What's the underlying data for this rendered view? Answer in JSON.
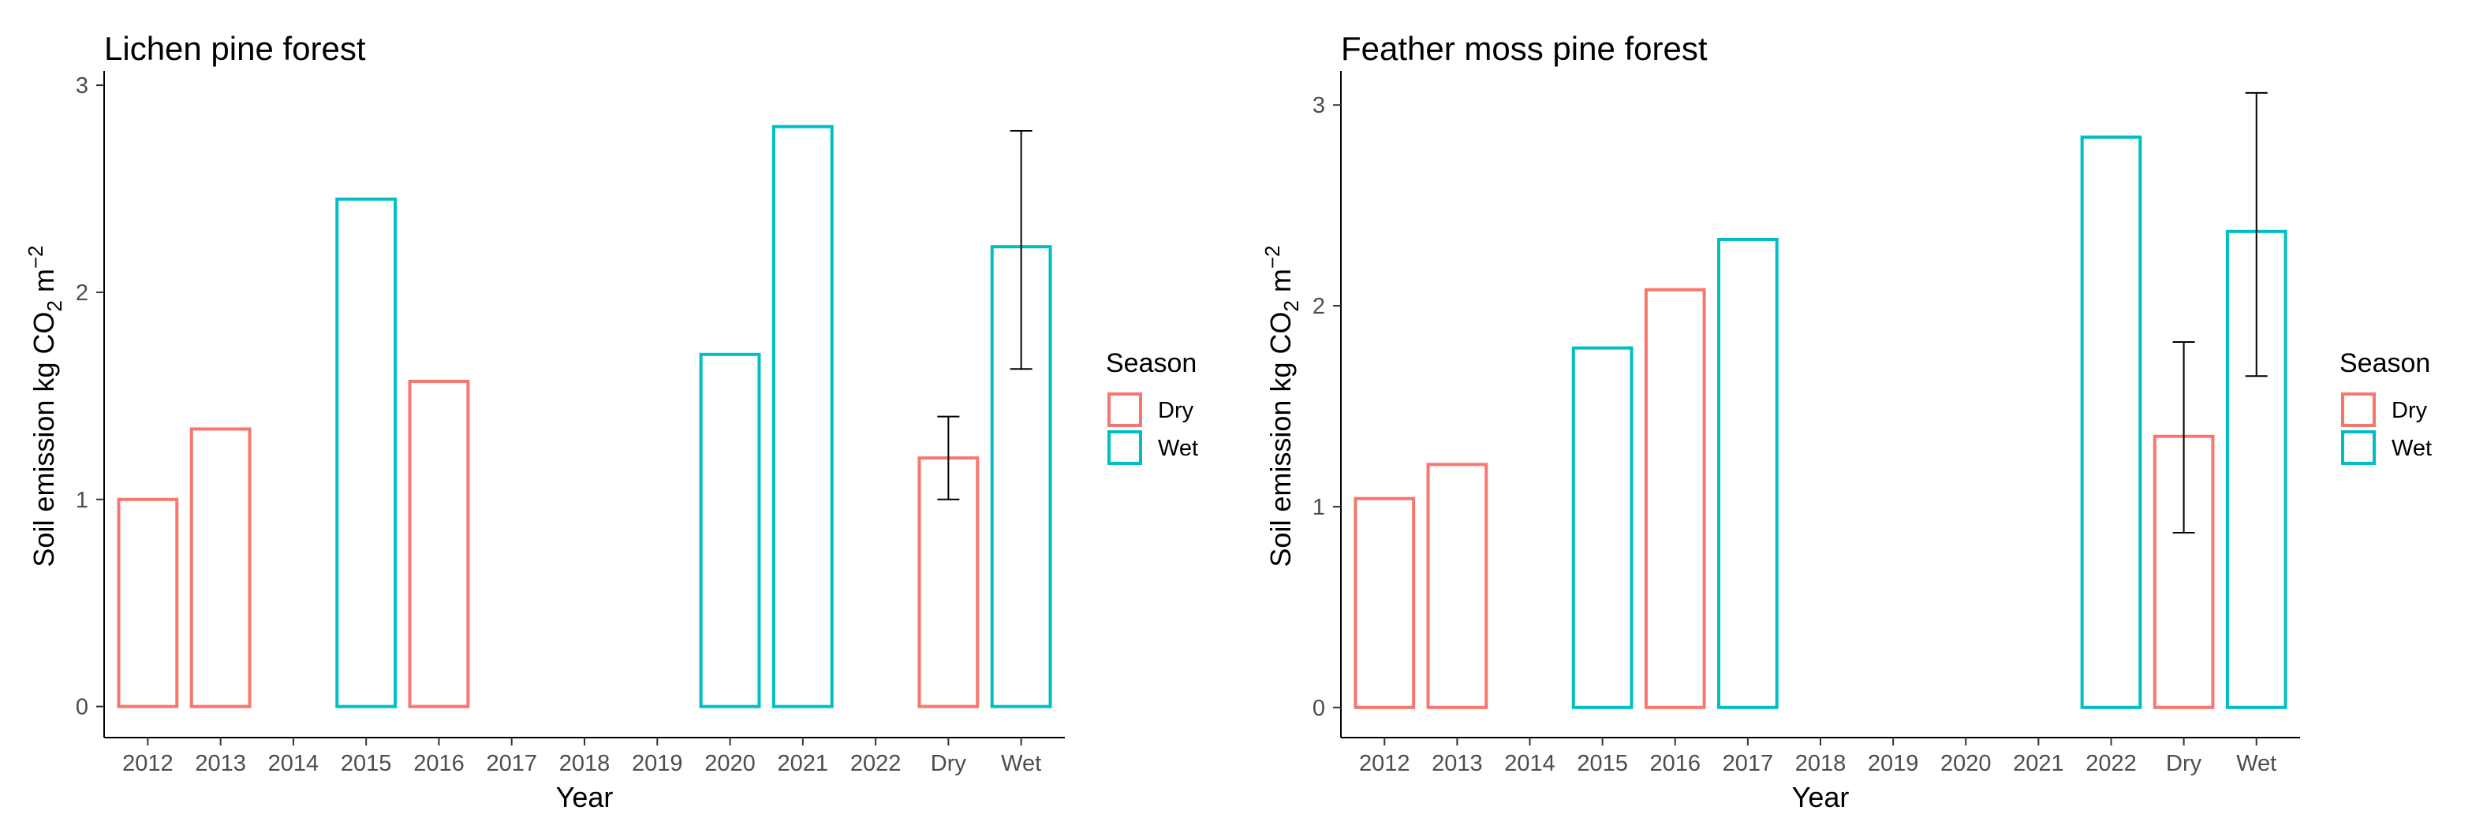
{
  "colors": {
    "Dry": "#f8766d",
    "Wet": "#00bfc4",
    "axis": "#000000",
    "tick_text": "#4d4d4d",
    "errorbar": "#000000"
  },
  "y_axis_label_parts": {
    "main": "Soil emission kg CO",
    "sub": "2",
    "mid": " m",
    "sup": "−2"
  },
  "chart_data": [
    {
      "type": "bar",
      "title": "Lichen pine forest",
      "xlabel": "Year",
      "ylabel": "Soil emission kg CO2 m-2",
      "ylim": [
        -0.15,
        3.05
      ],
      "yticks": [
        0,
        1,
        2,
        3
      ],
      "categories": [
        "2012",
        "2013",
        "2014",
        "2015",
        "2016",
        "2017",
        "2018",
        "2019",
        "2020",
        "2021",
        "2022",
        "Dry",
        "Wet"
      ],
      "bars": [
        {
          "category": "2012",
          "value": 1.0,
          "season": "Dry"
        },
        {
          "category": "2013",
          "value": 1.34,
          "season": "Dry"
        },
        {
          "category": "2015",
          "value": 2.45,
          "season": "Wet"
        },
        {
          "category": "2016",
          "value": 1.57,
          "season": "Dry"
        },
        {
          "category": "2020",
          "value": 1.7,
          "season": "Wet"
        },
        {
          "category": "2021",
          "value": 2.8,
          "season": "Wet"
        },
        {
          "category": "Dry",
          "value": 1.2,
          "season": "Dry",
          "error": [
            1.0,
            1.4
          ]
        },
        {
          "category": "Wet",
          "value": 2.22,
          "season": "Wet",
          "error": [
            1.63,
            2.78
          ]
        }
      ],
      "legend": {
        "title": "Season",
        "entries": [
          "Dry",
          "Wet"
        ]
      }
    },
    {
      "type": "bar",
      "title": "Feather moss pine forest",
      "xlabel": "Year",
      "ylabel": "Soil emission kg CO2 m-2",
      "ylim": [
        -0.15,
        3.15
      ],
      "yticks": [
        0,
        1,
        2,
        3
      ],
      "categories": [
        "2012",
        "2013",
        "2014",
        "2015",
        "2016",
        "2017",
        "2018",
        "2019",
        "2020",
        "2021",
        "2022",
        "Dry",
        "Wet"
      ],
      "bars": [
        {
          "category": "2012",
          "value": 1.04,
          "season": "Dry"
        },
        {
          "category": "2013",
          "value": 1.21,
          "season": "Dry"
        },
        {
          "category": "2015",
          "value": 1.79,
          "season": "Wet"
        },
        {
          "category": "2016",
          "value": 2.08,
          "season": "Dry"
        },
        {
          "category": "2017",
          "value": 2.33,
          "season": "Wet"
        },
        {
          "category": "2022",
          "value": 2.84,
          "season": "Wet"
        },
        {
          "category": "Dry",
          "value": 1.35,
          "season": "Dry",
          "error": [
            0.87,
            1.82
          ]
        },
        {
          "category": "Wet",
          "value": 2.37,
          "season": "Wet",
          "error": [
            1.65,
            3.06
          ]
        }
      ],
      "legend": {
        "title": "Season",
        "entries": [
          "Dry",
          "Wet"
        ]
      }
    }
  ]
}
